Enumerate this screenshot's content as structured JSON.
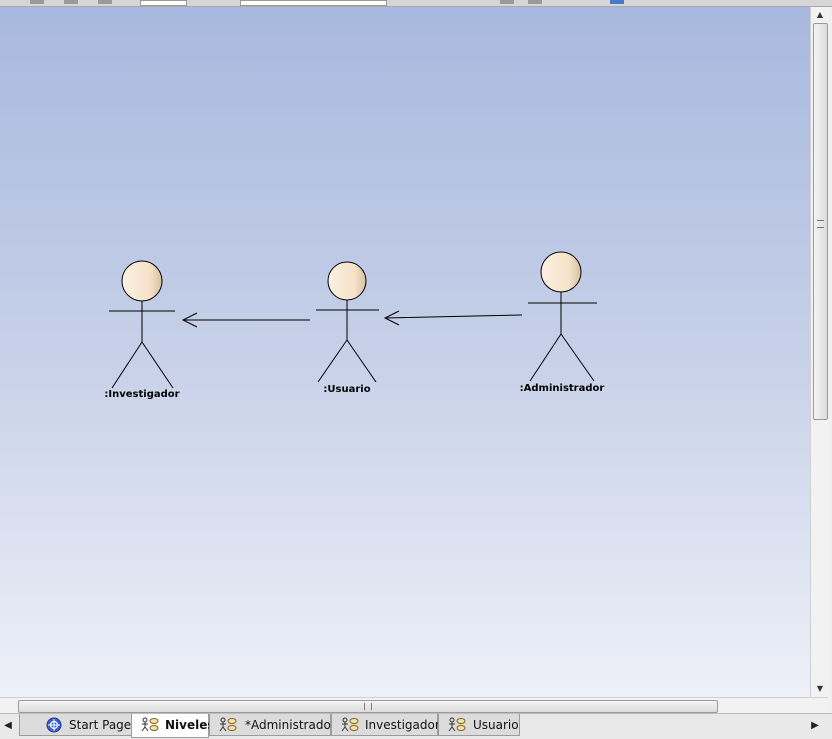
{
  "diagram": {
    "actors": [
      {
        "id": "investigador",
        "label": ":Investigador"
      },
      {
        "id": "usuario",
        "label": ":Usuario"
      },
      {
        "id": "administrador",
        "label": ":Administrador"
      }
    ],
    "relationships": [
      {
        "from": "usuario",
        "to": "investigador",
        "type": "generalization"
      },
      {
        "from": "administrador",
        "to": "usuario",
        "type": "generalization"
      }
    ],
    "colors": {
      "actor_head_fill": "#fae8d2",
      "background_top": "#a8b8de",
      "background_bottom": "#eef0f8"
    }
  },
  "tabs": [
    {
      "label": "Start Page",
      "icon": "start-page-icon"
    },
    {
      "label": "Niveles",
      "icon": "diagram-icon",
      "active": true
    },
    {
      "label": "*Administrador",
      "icon": "diagram-icon"
    },
    {
      "label": "Investigador",
      "icon": "diagram-icon"
    },
    {
      "label": "Usuario",
      "icon": "diagram-icon"
    }
  ]
}
